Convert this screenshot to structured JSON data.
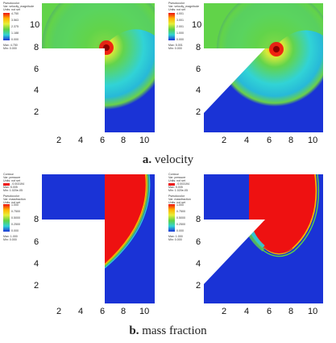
{
  "figure": {
    "captions": {
      "a": {
        "letter": "a.",
        "text": "velocity"
      },
      "b": {
        "letter": "b.",
        "text": "mass fraction"
      }
    },
    "ticks": {
      "x": [
        "2",
        "4",
        "6",
        "8",
        "10"
      ],
      "y_top": [
        "10",
        "8",
        "6",
        "4",
        "2"
      ],
      "y_bottom": [
        "8",
        "6",
        "4",
        "2"
      ]
    },
    "legend_velocity_left": {
      "title": "Pseudocolor",
      "var": "Var: velocity_magnitude",
      "units": "Units: not set",
      "values": [
        "4.750",
        "3.563",
        "2.375",
        "1.188",
        "0.000"
      ],
      "max": "Max: 4.750",
      "min": "Min: 0.000"
    },
    "legend_velocity_right": {
      "title": "Pseudocolor",
      "var": "Var: velocity_magnitude",
      "units": "Units: not set",
      "values": [
        "4.001",
        "3.001",
        "2.001",
        "1.000",
        "0.000"
      ],
      "max": "Max: 5.001",
      "min": "Min: 0.000"
    },
    "legend_mass_left": {
      "contour": "Contour",
      "contour_var": "Var: pressure",
      "contour_units": "Units: not set",
      "contour_value": "- 0.003194",
      "contour_max": "Max: 5.005",
      "contour_min": "Min: 1.020e-05",
      "title": "Pseudocolor",
      "var": "Var: massfraction",
      "units": "Units: not set",
      "values": [
        "1.000",
        "0.7500",
        "0.5000",
        "0.2500",
        "0.000"
      ],
      "max": "Max: 1.000",
      "min": "Min: 0.000"
    },
    "legend_mass_right": {
      "contour": "Contour",
      "contour_var": "Var: pressure",
      "contour_units": "Units: not set",
      "contour_value": "- 0.003194",
      "contour_max": "Max: 5.005",
      "contour_min": "Min: 1.020e-05",
      "title": "Pseudocolor",
      "var": "Var: massfraction",
      "units": "Units: not set",
      "values": [
        "1.000",
        "0.7500",
        "0.5000",
        "0.2500",
        "0.000"
      ],
      "max": "Max: 1.000",
      "min": "Min: 0.000"
    },
    "colors": {
      "blue": "#1a33d6",
      "red": "#ee1111",
      "green": "#6bd84a",
      "cyan": "#31d3d6",
      "white": "#ffffff"
    }
  }
}
